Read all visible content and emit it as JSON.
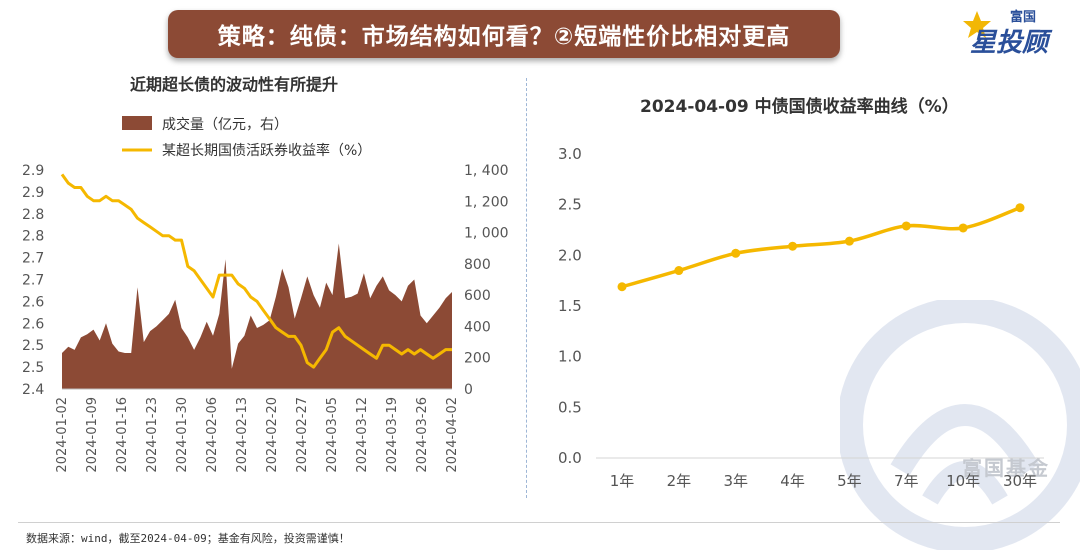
{
  "header": {
    "title": "策略：纯债：市场结构如何看？②短端性价比相对更高",
    "logo_top": "富国",
    "logo_main": "星投顾"
  },
  "watermark_text": "富国基金",
  "footer": {
    "source": "数据来源：wind，截至2024-04-09；基金有风险，投资需谨慎！"
  },
  "colors": {
    "banner": "#8c4a35",
    "bar": "#8c4a35",
    "line": "#f5b800",
    "axis_text": "#555555"
  },
  "chart_data": [
    {
      "type": "bar+line",
      "title": "近期超长债的波动性有所提升",
      "legend": {
        "position": "top-left",
        "entries": [
          "成交量（亿元，右）",
          "某超长期国债活跃券收益率（%）"
        ]
      },
      "x_tick_labels": [
        "2024-01-02",
        "2024-01-09",
        "2024-01-16",
        "2024-01-23",
        "2024-01-30",
        "2024-02-06",
        "2024-02-13",
        "2024-02-20",
        "2024-02-27",
        "2024-03-05",
        "2024-03-12",
        "2024-03-19",
        "2024-03-26",
        "2024-04-02"
      ],
      "y_left": {
        "ticks": [
          "2.4",
          "2.5",
          "2.5",
          "2.6",
          "2.6",
          "2.7",
          "2.7",
          "2.8",
          "2.8",
          "2.9",
          "2.9"
        ],
        "range": [
          2.4,
          2.9
        ]
      },
      "y_right": {
        "ticks": [
          "0",
          "200",
          "400",
          "600",
          "800",
          "1, 000",
          "1, 200",
          "1, 400"
        ],
        "range": [
          0,
          1400
        ]
      },
      "x": [
        "2024-01-02",
        "2024-01-03",
        "2024-01-04",
        "2024-01-05",
        "2024-01-08",
        "2024-01-09",
        "2024-01-10",
        "2024-01-11",
        "2024-01-12",
        "2024-01-15",
        "2024-01-16",
        "2024-01-17",
        "2024-01-18",
        "2024-01-19",
        "2024-01-22",
        "2024-01-23",
        "2024-01-24",
        "2024-01-25",
        "2024-01-26",
        "2024-01-29",
        "2024-01-30",
        "2024-01-31",
        "2024-02-01",
        "2024-02-02",
        "2024-02-05",
        "2024-02-06",
        "2024-02-07",
        "2024-02-08",
        "2024-02-19",
        "2024-02-20",
        "2024-02-21",
        "2024-02-22",
        "2024-02-23",
        "2024-02-26",
        "2024-02-27",
        "2024-02-28",
        "2024-02-29",
        "2024-03-01",
        "2024-03-04",
        "2024-03-05",
        "2024-03-06",
        "2024-03-07",
        "2024-03-08",
        "2024-03-11",
        "2024-03-12",
        "2024-03-13",
        "2024-03-14",
        "2024-03-15",
        "2024-03-18",
        "2024-03-19",
        "2024-03-20",
        "2024-03-21",
        "2024-03-22",
        "2024-03-25",
        "2024-03-26",
        "2024-03-27",
        "2024-03-28",
        "2024-03-29",
        "2024-04-01",
        "2024-04-02",
        "2024-04-03",
        "2024-04-08",
        "2024-04-09"
      ],
      "series": [
        {
          "name": "成交量（亿元，右）",
          "type": "area",
          "axis": "right",
          "values": [
            230,
            270,
            250,
            330,
            350,
            380,
            310,
            420,
            290,
            240,
            230,
            230,
            650,
            300,
            370,
            400,
            440,
            480,
            570,
            390,
            330,
            250,
            330,
            430,
            340,
            480,
            830,
            130,
            290,
            340,
            470,
            390,
            410,
            440,
            590,
            770,
            650,
            450,
            580,
            720,
            600,
            520,
            680,
            600,
            930,
            580,
            590,
            610,
            740,
            580,
            660,
            720,
            630,
            600,
            560,
            660,
            700,
            470,
            420,
            470,
            520,
            580,
            620
          ]
        },
        {
          "name": "某超长期国债活跃券收益率（%）",
          "type": "line",
          "axis": "left",
          "values": [
            2.89,
            2.87,
            2.86,
            2.86,
            2.84,
            2.83,
            2.83,
            2.84,
            2.83,
            2.83,
            2.82,
            2.81,
            2.79,
            2.78,
            2.77,
            2.76,
            2.75,
            2.75,
            2.74,
            2.74,
            2.68,
            2.67,
            2.65,
            2.63,
            2.61,
            2.66,
            2.66,
            2.66,
            2.64,
            2.63,
            2.61,
            2.6,
            2.58,
            2.56,
            2.54,
            2.53,
            2.52,
            2.52,
            2.5,
            2.46,
            2.45,
            2.47,
            2.49,
            2.53,
            2.54,
            2.52,
            2.51,
            2.5,
            2.49,
            2.48,
            2.47,
            2.5,
            2.5,
            2.49,
            2.48,
            2.49,
            2.48,
            2.49,
            2.48,
            2.47,
            2.48,
            2.49,
            2.49
          ]
        }
      ]
    },
    {
      "type": "line",
      "title": "2024-04-09 中债国债收益率曲线（%）",
      "categories": [
        "1年",
        "2年",
        "3年",
        "4年",
        "5年",
        "7年",
        "10年",
        "30年"
      ],
      "values": [
        1.69,
        1.85,
        2.02,
        2.09,
        2.14,
        2.29,
        2.27,
        2.47
      ],
      "y_ticks": [
        "0.0",
        "0.5",
        "1.0",
        "1.5",
        "2.0",
        "2.5",
        "3.0"
      ],
      "ylim": [
        0,
        3.0
      ],
      "grid": false
    }
  ]
}
